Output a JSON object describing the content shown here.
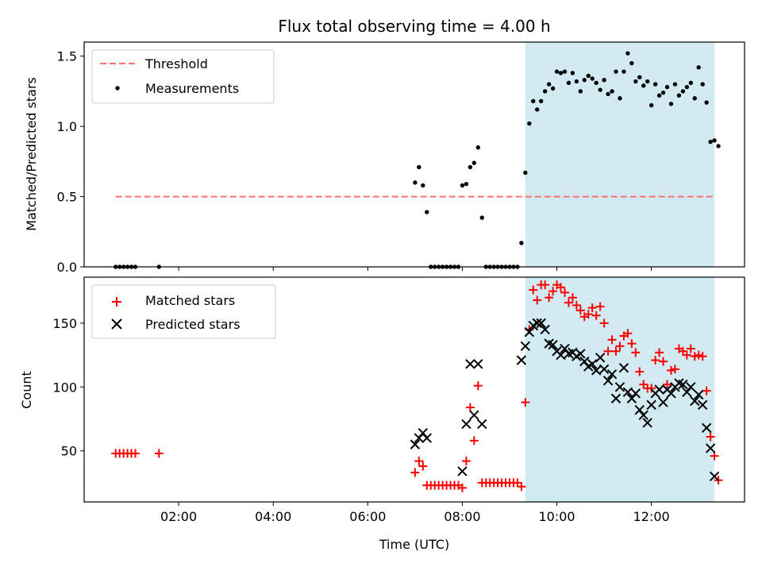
{
  "chart_data": {
    "title": "Flux total observing time = 4.00 h",
    "xlabel": "Time (UTC)",
    "x_ticks": [
      "02:00",
      "04:00",
      "06:00",
      "08:00",
      "10:00",
      "12:00"
    ],
    "shaded_region": {
      "x_start": "09:20",
      "x_end": "13:20",
      "color": "#add8e6"
    },
    "panels": [
      {
        "type": "scatter",
        "ylabel": "Matched/Predicted stars",
        "ylim": [
          0,
          1.6
        ],
        "y_ticks": [
          "0.0",
          "0.5",
          "1.0",
          "1.5"
        ],
        "legend_placement": "top-left",
        "threshold": {
          "name": "Threshold",
          "value": 0.5,
          "x_start": "00:40",
          "x_end": "13:20",
          "color": "#ff7070",
          "style": "dashed"
        },
        "series": [
          {
            "name": "Measurements",
            "color": "#000000",
            "marker": "dot",
            "points": [
              [
                "00:40",
                0.0
              ],
              [
                "00:45",
                0.0
              ],
              [
                "00:50",
                0.0
              ],
              [
                "00:55",
                0.0
              ],
              [
                "01:00",
                0.0
              ],
              [
                "01:05",
                0.0
              ],
              [
                "01:35",
                0.0
              ],
              [
                "07:00",
                0.6
              ],
              [
                "07:05",
                0.71
              ],
              [
                "07:10",
                0.58
              ],
              [
                "07:15",
                0.39
              ],
              [
                "07:20",
                0.0
              ],
              [
                "07:25",
                0.0
              ],
              [
                "07:30",
                0.0
              ],
              [
                "07:35",
                0.0
              ],
              [
                "07:40",
                0.0
              ],
              [
                "07:45",
                0.0
              ],
              [
                "07:50",
                0.0
              ],
              [
                "07:55",
                0.0
              ],
              [
                "08:00",
                0.58
              ],
              [
                "08:05",
                0.59
              ],
              [
                "08:10",
                0.71
              ],
              [
                "08:15",
                0.74
              ],
              [
                "08:20",
                0.85
              ],
              [
                "08:25",
                0.35
              ],
              [
                "08:30",
                0.0
              ],
              [
                "08:35",
                0.0
              ],
              [
                "08:40",
                0.0
              ],
              [
                "08:45",
                0.0
              ],
              [
                "08:50",
                0.0
              ],
              [
                "08:55",
                0.0
              ],
              [
                "09:00",
                0.0
              ],
              [
                "09:05",
                0.0
              ],
              [
                "09:10",
                0.0
              ],
              [
                "09:15",
                0.17
              ],
              [
                "09:20",
                0.67
              ],
              [
                "09:25",
                1.02
              ],
              [
                "09:30",
                1.18
              ],
              [
                "09:35",
                1.12
              ],
              [
                "09:40",
                1.18
              ],
              [
                "09:45",
                1.25
              ],
              [
                "09:50",
                1.3
              ],
              [
                "09:55",
                1.27
              ],
              [
                "10:00",
                1.39
              ],
              [
                "10:05",
                1.38
              ],
              [
                "10:10",
                1.39
              ],
              [
                "10:15",
                1.31
              ],
              [
                "10:20",
                1.38
              ],
              [
                "10:25",
                1.32
              ],
              [
                "10:30",
                1.25
              ],
              [
                "10:35",
                1.33
              ],
              [
                "10:40",
                1.36
              ],
              [
                "10:45",
                1.34
              ],
              [
                "10:50",
                1.31
              ],
              [
                "10:55",
                1.26
              ],
              [
                "11:00",
                1.33
              ],
              [
                "11:05",
                1.23
              ],
              [
                "11:10",
                1.25
              ],
              [
                "11:15",
                1.39
              ],
              [
                "11:20",
                1.2
              ],
              [
                "11:25",
                1.39
              ],
              [
                "11:30",
                1.52
              ],
              [
                "11:35",
                1.45
              ],
              [
                "11:40",
                1.32
              ],
              [
                "11:45",
                1.35
              ],
              [
                "11:50",
                1.29
              ],
              [
                "11:55",
                1.32
              ],
              [
                "12:00",
                1.15
              ],
              [
                "12:05",
                1.3
              ],
              [
                "12:10",
                1.22
              ],
              [
                "12:15",
                1.24
              ],
              [
                "12:20",
                1.28
              ],
              [
                "12:25",
                1.16
              ],
              [
                "12:30",
                1.3
              ],
              [
                "12:35",
                1.22
              ],
              [
                "12:40",
                1.25
              ],
              [
                "12:45",
                1.28
              ],
              [
                "12:50",
                1.31
              ],
              [
                "12:55",
                1.2
              ],
              [
                "13:00",
                1.42
              ],
              [
                "13:05",
                1.3
              ],
              [
                "13:10",
                1.17
              ],
              [
                "13:15",
                0.89
              ],
              [
                "13:20",
                0.9
              ],
              [
                "13:25",
                0.86
              ]
            ]
          }
        ]
      },
      {
        "type": "scatter",
        "ylabel": "Count",
        "ylim": [
          10,
          186
        ],
        "y_ticks": [
          "50",
          "100",
          "150"
        ],
        "legend_placement": "top-left",
        "series": [
          {
            "name": "Matched stars",
            "color": "#ff0000",
            "marker": "plus",
            "points": [
              [
                "00:40",
                48
              ],
              [
                "00:45",
                48
              ],
              [
                "00:50",
                48
              ],
              [
                "00:55",
                48
              ],
              [
                "01:00",
                48
              ],
              [
                "01:05",
                48
              ],
              [
                "01:35",
                48
              ],
              [
                "07:00",
                33
              ],
              [
                "07:05",
                42
              ],
              [
                "07:10",
                38
              ],
              [
                "07:15",
                23
              ],
              [
                "07:20",
                23
              ],
              [
                "07:25",
                23
              ],
              [
                "07:30",
                23
              ],
              [
                "07:35",
                23
              ],
              [
                "07:40",
                23
              ],
              [
                "07:45",
                23
              ],
              [
                "07:50",
                23
              ],
              [
                "07:55",
                23
              ],
              [
                "08:00",
                21
              ],
              [
                "08:05",
                42
              ],
              [
                "08:10",
                84
              ],
              [
                "08:15",
                58
              ],
              [
                "08:20",
                101
              ],
              [
                "08:25",
                25
              ],
              [
                "08:30",
                25
              ],
              [
                "08:35",
                25
              ],
              [
                "08:40",
                25
              ],
              [
                "08:45",
                25
              ],
              [
                "08:50",
                25
              ],
              [
                "08:55",
                25
              ],
              [
                "09:00",
                25
              ],
              [
                "09:05",
                25
              ],
              [
                "09:10",
                25
              ],
              [
                "09:15",
                22
              ],
              [
                "09:20",
                88
              ],
              [
                "09:25",
                145
              ],
              [
                "09:30",
                176
              ],
              [
                "09:35",
                168
              ],
              [
                "09:40",
                180
              ],
              [
                "09:45",
                180
              ],
              [
                "09:50",
                170
              ],
              [
                "09:55",
                175
              ],
              [
                "10:00",
                180
              ],
              [
                "10:05",
                178
              ],
              [
                "10:10",
                174
              ],
              [
                "10:15",
                166
              ],
              [
                "10:20",
                170
              ],
              [
                "10:25",
                164
              ],
              [
                "10:30",
                160
              ],
              [
                "10:35",
                155
              ],
              [
                "10:40",
                157
              ],
              [
                "10:45",
                162
              ],
              [
                "10:50",
                156
              ],
              [
                "10:55",
                163
              ],
              [
                "11:00",
                150
              ],
              [
                "11:05",
                128
              ],
              [
                "11:10",
                137
              ],
              [
                "11:15",
                128
              ],
              [
                "11:20",
                132
              ],
              [
                "11:25",
                140
              ],
              [
                "11:30",
                142
              ],
              [
                "11:35",
                134
              ],
              [
                "11:40",
                127
              ],
              [
                "11:45",
                112
              ],
              [
                "11:50",
                102
              ],
              [
                "11:55",
                99
              ],
              [
                "12:00",
                99
              ],
              [
                "12:05",
                121
              ],
              [
                "12:10",
                127
              ],
              [
                "12:15",
                120
              ],
              [
                "12:20",
                102
              ],
              [
                "12:25",
                113
              ],
              [
                "12:30",
                114
              ],
              [
                "12:35",
                130
              ],
              [
                "12:40",
                128
              ],
              [
                "12:45",
                125
              ],
              [
                "12:50",
                130
              ],
              [
                "12:55",
                124
              ],
              [
                "13:00",
                125
              ],
              [
                "13:05",
                124
              ],
              [
                "13:10",
                97
              ],
              [
                "13:15",
                61
              ],
              [
                "13:20",
                46
              ],
              [
                "13:25",
                27
              ]
            ]
          },
          {
            "name": "Predicted stars",
            "color": "#000000",
            "marker": "x",
            "points": [
              [
                "07:00",
                55
              ],
              [
                "07:05",
                60
              ],
              [
                "07:10",
                64
              ],
              [
                "07:15",
                60
              ],
              [
                "08:00",
                34
              ],
              [
                "08:05",
                71
              ],
              [
                "08:10",
                118
              ],
              [
                "08:15",
                78
              ],
              [
                "08:20",
                118
              ],
              [
                "08:25",
                71
              ],
              [
                "09:15",
                121
              ],
              [
                "09:20",
                132
              ],
              [
                "09:25",
                143
              ],
              [
                "09:30",
                148
              ],
              [
                "09:35",
                150
              ],
              [
                "09:40",
                150
              ],
              [
                "09:45",
                145
              ],
              [
                "09:50",
                134
              ],
              [
                "09:55",
                133
              ],
              [
                "10:00",
                128
              ],
              [
                "10:05",
                125
              ],
              [
                "10:10",
                130
              ],
              [
                "10:15",
                126
              ],
              [
                "10:20",
                127
              ],
              [
                "10:25",
                124
              ],
              [
                "10:30",
                126
              ],
              [
                "10:35",
                120
              ],
              [
                "10:40",
                116
              ],
              [
                "10:45",
                118
              ],
              [
                "10:50",
                113
              ],
              [
                "10:55",
                123
              ],
              [
                "11:00",
                114
              ],
              [
                "11:05",
                105
              ],
              [
                "11:10",
                110
              ],
              [
                "11:15",
                91
              ],
              [
                "11:20",
                100
              ],
              [
                "11:25",
                115
              ],
              [
                "11:30",
                96
              ],
              [
                "11:35",
                91
              ],
              [
                "11:40",
                95
              ],
              [
                "11:45",
                82
              ],
              [
                "11:50",
                78
              ],
              [
                "11:55",
                72
              ],
              [
                "12:00",
                86
              ],
              [
                "12:05",
                95
              ],
              [
                "12:10",
                98
              ],
              [
                "12:15",
                88
              ],
              [
                "12:20",
                98
              ],
              [
                "12:25",
                95
              ],
              [
                "12:30",
                100
              ],
              [
                "12:35",
                103
              ],
              [
                "12:40",
                102
              ],
              [
                "12:45",
                96
              ],
              [
                "12:50",
                100
              ],
              [
                "12:55",
                89
              ],
              [
                "13:00",
                94
              ],
              [
                "13:05",
                86
              ],
              [
                "13:10",
                68
              ],
              [
                "13:15",
                52
              ],
              [
                "13:20",
                30
              ]
            ]
          }
        ]
      }
    ]
  }
}
